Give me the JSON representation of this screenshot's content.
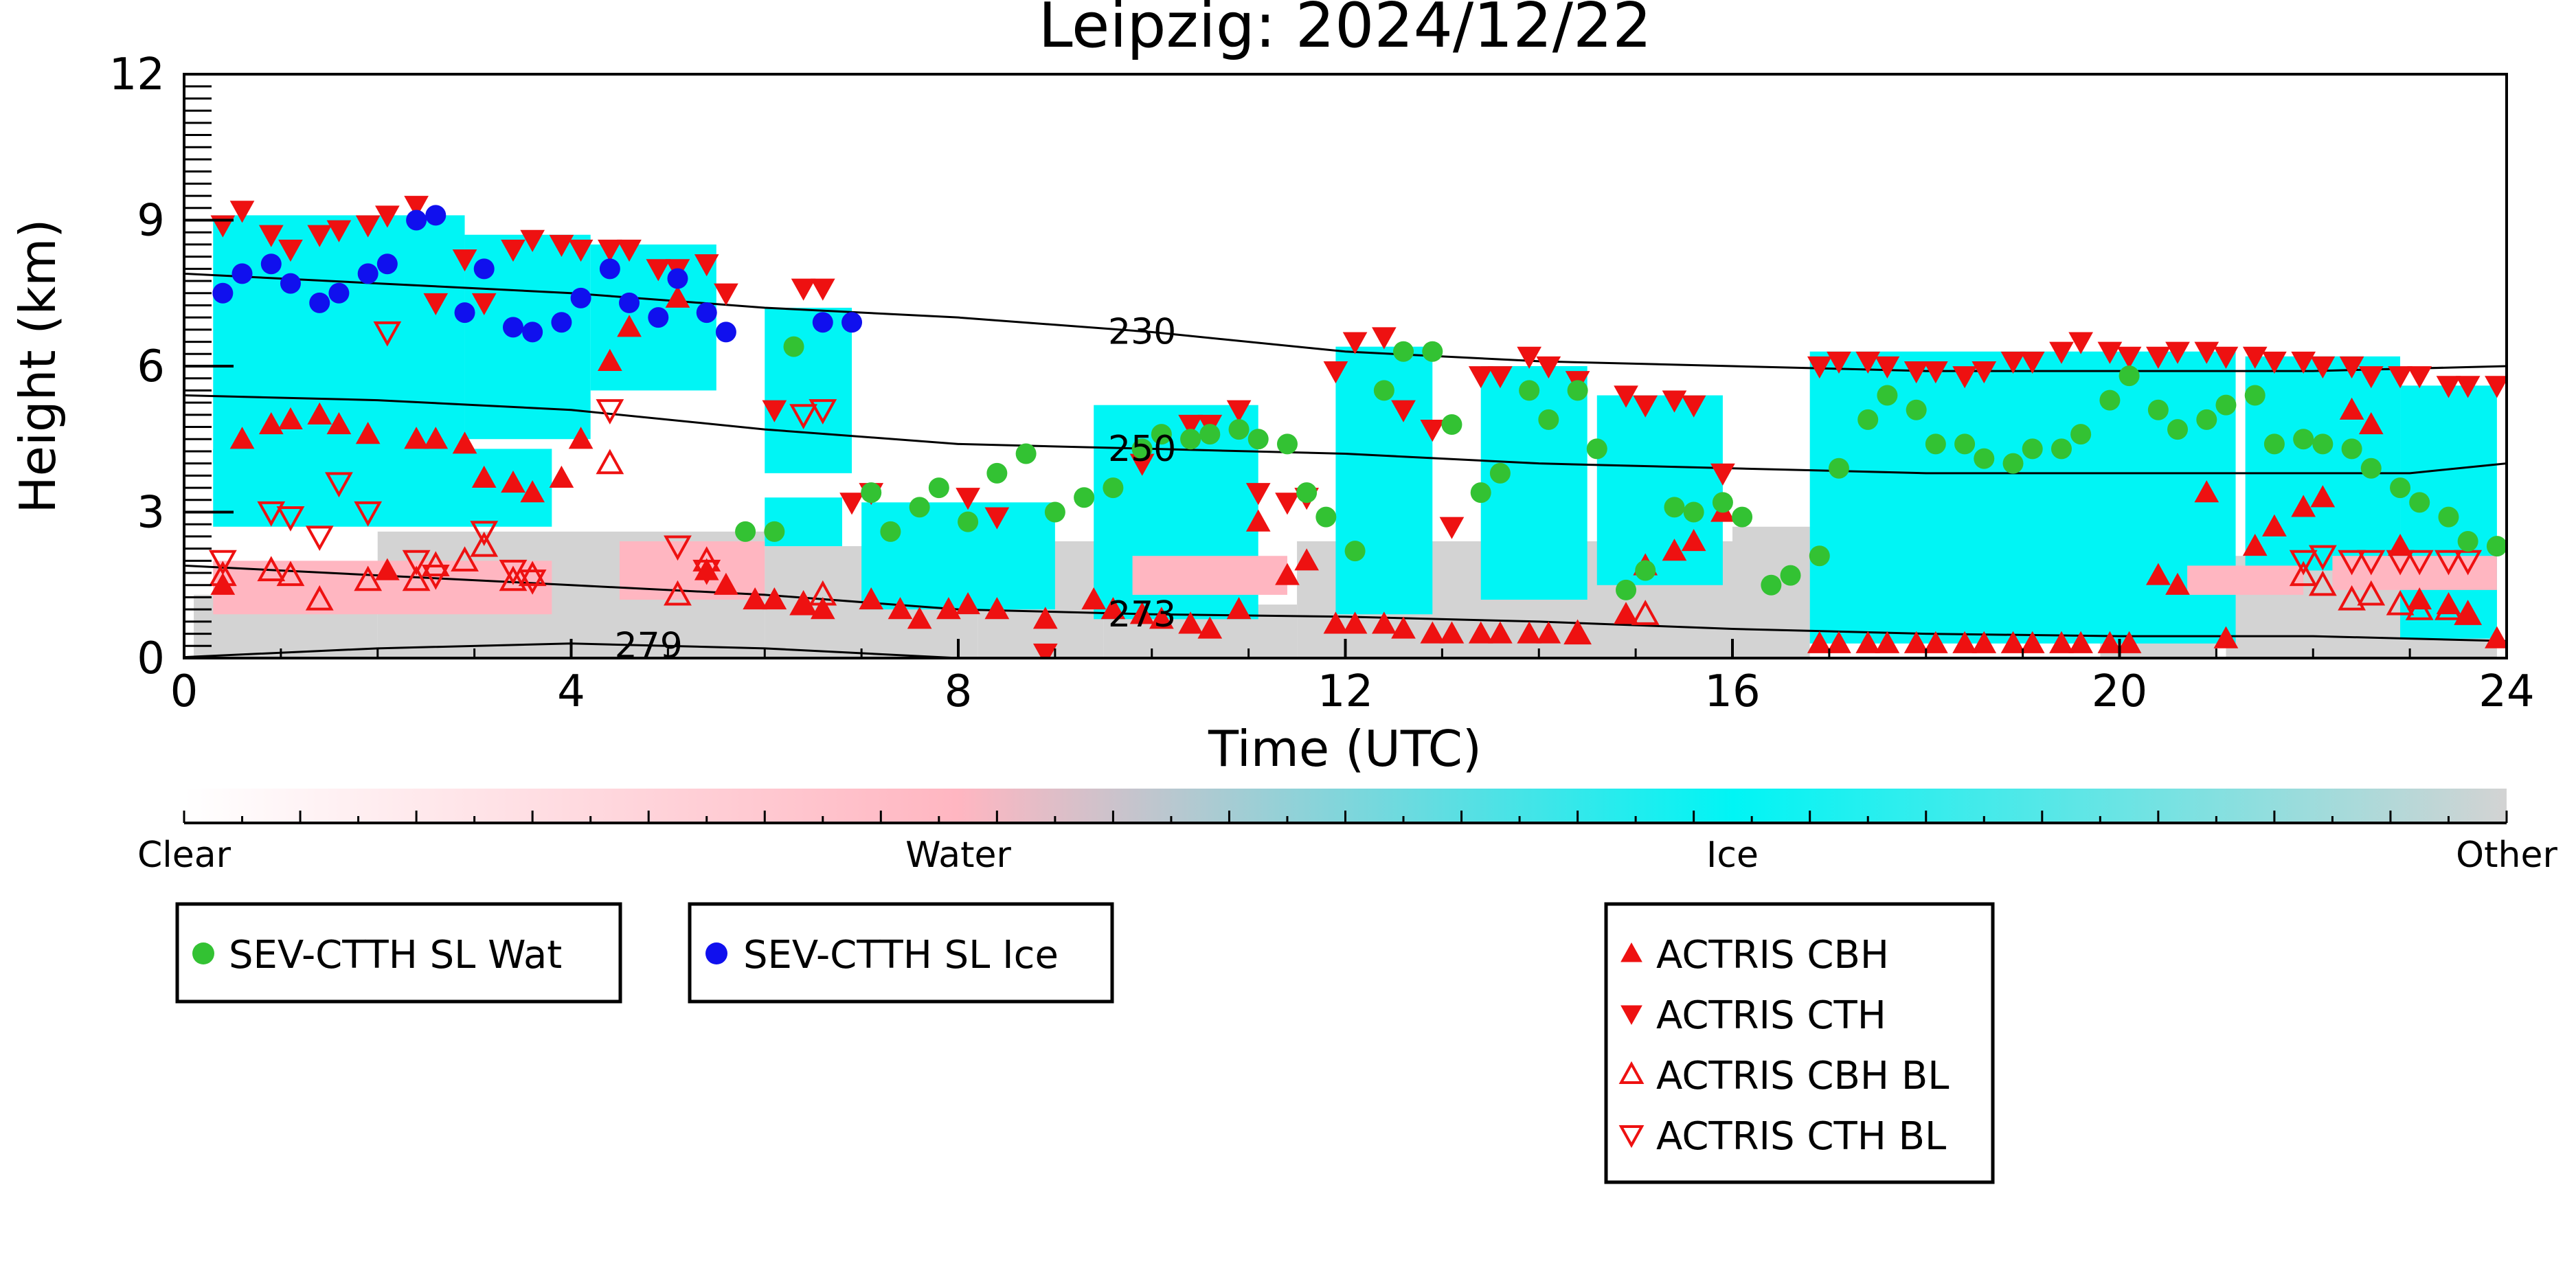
{
  "chart_data": {
    "type": "scatter",
    "title": "Leipzig: 2024/12/22",
    "xlabel": "Time (UTC)",
    "ylabel": "Height (km)",
    "xlim": [
      0,
      24
    ],
    "ylim": [
      0,
      12
    ],
    "xticks": [
      "0",
      "4",
      "8",
      "12",
      "16",
      "20",
      "24"
    ],
    "yticks": [
      "0",
      "3",
      "6",
      "9",
      "12"
    ],
    "colorbar": {
      "labels": [
        "Clear",
        "Water",
        "Ice",
        "Other"
      ],
      "colors": [
        "#ffffff",
        "#ffb6c1",
        "#00f5f5",
        "#d3d3d3"
      ]
    },
    "colors": {
      "clear": "#ffffff",
      "water": "#ffb6c1",
      "ice": "#00f5f5",
      "other": "#d3d3d3",
      "sev_wat": "#33c233",
      "sev_ice": "#1010ee",
      "actris": "#ee1111"
    },
    "isotherms": [
      {
        "label": "230",
        "label_x": 9.9,
        "x": [
          0,
          2,
          4,
          6,
          8,
          10,
          12,
          14,
          16,
          18,
          20,
          22,
          24
        ],
        "y": [
          7.9,
          7.7,
          7.5,
          7.2,
          7.0,
          6.7,
          6.3,
          6.1,
          6.0,
          5.9,
          5.9,
          5.9,
          6.0
        ]
      },
      {
        "label": "250",
        "label_x": 9.9,
        "x": [
          0,
          2,
          4,
          6,
          8,
          10,
          12,
          14,
          16,
          18,
          20,
          22,
          23,
          24
        ],
        "y": [
          5.4,
          5.3,
          5.1,
          4.7,
          4.4,
          4.3,
          4.2,
          4.0,
          3.9,
          3.8,
          3.8,
          3.8,
          3.8,
          4.0
        ]
      },
      {
        "label": "273",
        "label_x": 9.9,
        "x": [
          0,
          2,
          4,
          6,
          8,
          10,
          12,
          14,
          16,
          18,
          20,
          22,
          24
        ],
        "y": [
          1.9,
          1.7,
          1.5,
          1.3,
          1.0,
          0.9,
          0.85,
          0.75,
          0.6,
          0.5,
          0.45,
          0.45,
          0.35
        ]
      },
      {
        "label": "279",
        "label_x": 4.8,
        "x": [
          0,
          2,
          4,
          6,
          8
        ],
        "y": [
          0.02,
          0.2,
          0.3,
          0.2,
          0.0
        ]
      }
    ],
    "mask": {
      "ice": [
        [
          0.3,
          2.9,
          4.0,
          9.1
        ],
        [
          2.9,
          4.2,
          4.5,
          8.7
        ],
        [
          4.2,
          5.5,
          5.5,
          8.5
        ],
        [
          0.3,
          3.8,
          2.7,
          4.3
        ],
        [
          6.0,
          6.9,
          3.8,
          7.2
        ],
        [
          6.0,
          6.8,
          2.3,
          3.3
        ],
        [
          7.0,
          9.0,
          1.0,
          3.2
        ],
        [
          9.4,
          11.1,
          0.8,
          5.2
        ],
        [
          11.9,
          12.9,
          0.9,
          6.4
        ],
        [
          13.4,
          14.5,
          1.2,
          6.0
        ],
        [
          14.6,
          15.9,
          1.5,
          5.4
        ],
        [
          16.8,
          21.2,
          0.3,
          6.3
        ],
        [
          21.3,
          22.9,
          1.8,
          6.2
        ],
        [
          22.9,
          23.9,
          0.4,
          5.6
        ]
      ],
      "water": [
        [
          0.3,
          3.8,
          0.9,
          2.0
        ],
        [
          4.5,
          6.0,
          1.2,
          2.4
        ],
        [
          9.8,
          11.4,
          1.3,
          2.1
        ],
        [
          20.7,
          21.9,
          1.3,
          1.9
        ],
        [
          22.2,
          23.9,
          1.4,
          2.1
        ]
      ],
      "other": [
        [
          0.1,
          2.0,
          0.0,
          1.3
        ],
        [
          2.0,
          6.0,
          0.0,
          2.6
        ],
        [
          6.0,
          8.2,
          0.0,
          2.3
        ],
        [
          8.2,
          9.5,
          0.0,
          2.4
        ],
        [
          9.5,
          11.5,
          0.0,
          1.1
        ],
        [
          11.5,
          16.0,
          0.0,
          2.4
        ],
        [
          16.0,
          16.8,
          0.0,
          2.7
        ],
        [
          21.1,
          23.9,
          0.0,
          2.1
        ],
        [
          19.8,
          21.0,
          0.0,
          0.9
        ]
      ]
    },
    "series": [
      {
        "name": "SEV-CTTH SL Wat",
        "marker": "circle",
        "color": "#33c233",
        "x": [
          6.3,
          5.8,
          6.1,
          7.1,
          7.3,
          7.6,
          7.8,
          8.1,
          8.4,
          8.7,
          9.0,
          9.3,
          9.6,
          9.9,
          10.1,
          10.4,
          10.6,
          10.9,
          11.1,
          11.4,
          11.6,
          11.8,
          12.1,
          12.4,
          12.6,
          12.9,
          13.1,
          13.4,
          13.6,
          13.9,
          14.1,
          14.4,
          14.6,
          14.9,
          15.1,
          15.4,
          15.6,
          15.9,
          16.1,
          16.4,
          16.6,
          16.9,
          17.1,
          17.4,
          17.6,
          17.9,
          18.1,
          18.4,
          18.6,
          18.9,
          19.1,
          19.4,
          19.6,
          19.9,
          20.1,
          20.4,
          20.6,
          20.9,
          21.1,
          21.4,
          21.6,
          21.9,
          22.1,
          22.4,
          22.6,
          22.9,
          23.1,
          23.4,
          23.6,
          23.9
        ],
        "y": [
          6.4,
          2.6,
          2.6,
          3.4,
          2.6,
          3.1,
          3.5,
          2.8,
          3.8,
          4.2,
          3.0,
          3.3,
          3.5,
          4.3,
          4.6,
          4.5,
          4.6,
          4.7,
          4.5,
          4.4,
          3.4,
          2.9,
          2.2,
          5.5,
          6.3,
          6.3,
          4.8,
          3.4,
          3.8,
          5.5,
          4.9,
          5.5,
          4.3,
          1.4,
          1.8,
          3.1,
          3.0,
          3.2,
          2.9,
          1.5,
          1.7,
          2.1,
          3.9,
          4.9,
          5.4,
          5.1,
          4.4,
          4.4,
          4.1,
          4.0,
          4.3,
          4.3,
          4.6,
          5.3,
          5.8,
          5.1,
          4.7,
          4.9,
          5.2,
          5.4,
          4.4,
          4.5,
          4.4,
          4.3,
          3.9,
          3.5,
          3.2,
          2.9,
          2.4,
          2.3
        ]
      },
      {
        "name": "SEV-CTTH SL Ice",
        "marker": "circle",
        "color": "#1010ee",
        "x": [
          0.4,
          0.6,
          0.9,
          1.1,
          1.4,
          1.6,
          1.9,
          2.1,
          2.4,
          2.6,
          2.9,
          3.1,
          3.4,
          3.6,
          3.9,
          4.1,
          4.4,
          4.6,
          4.9,
          5.1,
          5.4,
          5.6,
          6.6,
          6.9
        ],
        "y": [
          7.5,
          7.9,
          8.1,
          7.7,
          7.3,
          7.5,
          7.9,
          8.1,
          9.0,
          9.1,
          7.1,
          8.0,
          6.8,
          6.7,
          6.9,
          7.4,
          8.0,
          7.3,
          7.0,
          7.8,
          7.1,
          6.7,
          6.9,
          6.9
        ]
      },
      {
        "name": "ACTRIS CBH",
        "marker": "triangle-up",
        "color": "#ee1111",
        "filled": true,
        "x": [
          0.4,
          0.6,
          0.9,
          1.1,
          1.4,
          1.6,
          1.9,
          2.1,
          2.4,
          2.6,
          2.9,
          3.1,
          3.4,
          3.6,
          3.9,
          4.1,
          4.4,
          4.6,
          5.1,
          5.4,
          5.6,
          5.9,
          6.1,
          6.4,
          6.6,
          7.1,
          7.4,
          7.6,
          7.9,
          8.1,
          8.4,
          8.9,
          9.4,
          9.6,
          9.9,
          10.1,
          10.4,
          10.6,
          10.9,
          11.1,
          11.4,
          11.6,
          11.9,
          12.1,
          12.4,
          12.6,
          12.9,
          13.1,
          13.4,
          13.6,
          13.9,
          14.1,
          14.4,
          14.9,
          15.1,
          15.4,
          15.6,
          15.9,
          16.9,
          17.1,
          17.4,
          17.6,
          17.9,
          18.1,
          18.4,
          18.6,
          18.9,
          19.1,
          19.4,
          19.6,
          19.9,
          20.1,
          20.4,
          20.6,
          20.9,
          21.1,
          21.4,
          21.6,
          21.9,
          22.1,
          22.4,
          22.6,
          22.9,
          23.1,
          23.4,
          23.6,
          23.9
        ],
        "y": [
          1.5,
          4.5,
          4.8,
          4.9,
          5.0,
          4.8,
          4.6,
          1.8,
          4.5,
          4.5,
          4.4,
          3.7,
          3.6,
          3.4,
          3.7,
          4.5,
          6.1,
          6.8,
          7.4,
          1.8,
          1.5,
          1.2,
          1.2,
          1.1,
          1.0,
          1.2,
          1.0,
          0.8,
          1.0,
          1.1,
          1.0,
          0.8,
          1.2,
          1.0,
          0.9,
          0.8,
          0.7,
          0.6,
          1.0,
          2.8,
          1.7,
          2.0,
          0.7,
          0.7,
          0.7,
          0.6,
          0.5,
          0.5,
          0.5,
          0.5,
          0.5,
          0.5,
          0.5,
          0.9,
          1.9,
          2.2,
          2.4,
          3.0,
          0.3,
          0.3,
          0.3,
          0.3,
          0.3,
          0.3,
          0.3,
          0.3,
          0.3,
          0.3,
          0.3,
          0.3,
          0.3,
          0.3,
          1.7,
          1.5,
          3.4,
          0.4,
          2.3,
          2.7,
          3.1,
          3.3,
          5.1,
          4.8,
          2.3,
          1.2,
          1.1,
          0.9,
          0.4
        ]
      },
      {
        "name": "ACTRIS CTH",
        "marker": "triangle-down",
        "color": "#ee1111",
        "filled": true,
        "x": [
          0.4,
          0.6,
          0.9,
          1.1,
          1.4,
          1.6,
          1.9,
          2.1,
          2.4,
          2.6,
          2.9,
          3.1,
          3.4,
          3.6,
          3.9,
          4.1,
          4.4,
          4.6,
          4.9,
          5.1,
          5.4,
          5.6,
          6.1,
          6.4,
          6.6,
          6.9,
          7.1,
          8.1,
          8.4,
          8.9,
          9.9,
          10.4,
          10.6,
          10.9,
          11.1,
          11.4,
          11.6,
          11.9,
          12.1,
          12.4,
          12.6,
          12.9,
          13.1,
          13.4,
          13.6,
          13.9,
          14.1,
          14.4,
          14.9,
          15.1,
          15.4,
          15.6,
          15.9,
          16.9,
          17.1,
          17.4,
          17.6,
          17.9,
          18.1,
          18.4,
          18.6,
          18.9,
          19.1,
          19.4,
          19.6,
          19.9,
          20.1,
          20.4,
          20.6,
          20.9,
          21.1,
          21.4,
          21.6,
          21.9,
          22.1,
          22.4,
          22.6,
          22.9,
          23.1,
          23.4,
          23.6,
          23.9
        ],
        "y": [
          8.9,
          9.2,
          8.7,
          8.4,
          8.7,
          8.8,
          8.9,
          9.1,
          9.3,
          7.3,
          8.2,
          7.3,
          8.4,
          8.6,
          8.5,
          8.4,
          8.4,
          8.4,
          8.0,
          8.0,
          8.1,
          7.5,
          5.1,
          7.6,
          7.6,
          3.2,
          3.4,
          3.3,
          2.9,
          0.1,
          4.0,
          4.8,
          4.8,
          5.1,
          3.4,
          3.2,
          3.3,
          5.9,
          6.5,
          6.6,
          5.1,
          4.7,
          2.7,
          5.8,
          5.8,
          6.2,
          6.0,
          5.7,
          5.4,
          5.2,
          5.3,
          5.2,
          3.8,
          6.0,
          6.1,
          6.1,
          6.0,
          5.9,
          5.9,
          5.8,
          5.9,
          6.1,
          6.1,
          6.3,
          6.5,
          6.3,
          6.2,
          6.2,
          6.3,
          6.3,
          6.2,
          6.2,
          6.1,
          6.1,
          6.0,
          6.0,
          5.8,
          5.8,
          5.8,
          5.6,
          5.6,
          5.6
        ]
      },
      {
        "name": "ACTRIS CBH BL",
        "marker": "triangle-up",
        "color": "#ee1111",
        "filled": false,
        "x": [
          0.4,
          0.9,
          1.1,
          1.4,
          1.9,
          2.4,
          2.6,
          2.9,
          3.1,
          3.4,
          3.6,
          4.4,
          5.1,
          5.4,
          6.4,
          6.6,
          14.4,
          15.1,
          21.9,
          22.1,
          22.4,
          22.6,
          22.9,
          23.1,
          23.4,
          23.6
        ],
        "y": [
          1.7,
          1.8,
          1.7,
          1.2,
          1.6,
          1.6,
          1.9,
          2.0,
          2.3,
          1.6,
          1.7,
          4.0,
          1.3,
          2.0,
          1.1,
          1.3,
          0.5,
          0.9,
          1.7,
          1.5,
          1.2,
          1.3,
          1.1,
          1.0,
          1.0,
          0.9
        ]
      },
      {
        "name": "ACTRIS CTH BL",
        "marker": "triangle-down",
        "color": "#ee1111",
        "filled": false,
        "x": [
          0.4,
          0.9,
          1.1,
          1.4,
          1.6,
          1.9,
          2.1,
          2.4,
          2.6,
          3.1,
          3.4,
          3.6,
          4.4,
          5.1,
          5.4,
          6.4,
          6.6,
          21.9,
          22.1,
          22.4,
          22.6,
          22.9,
          23.1,
          23.4,
          23.6
        ],
        "y": [
          2.0,
          3.0,
          2.9,
          2.5,
          3.6,
          3.0,
          6.7,
          2.0,
          1.7,
          2.6,
          1.8,
          1.6,
          5.1,
          2.3,
          1.8,
          5.0,
          5.1,
          2.0,
          2.1,
          2.0,
          2.0,
          2.0,
          2.0,
          2.0,
          2.0
        ]
      }
    ],
    "legend": [
      {
        "group": "sev-wat",
        "label": "SEV-CTTH SL Wat"
      },
      {
        "group": "sev-ice",
        "label": "SEV-CTTH SL Ice"
      },
      {
        "group": "actris",
        "items": [
          "ACTRIS CBH",
          "ACTRIS CTH",
          "ACTRIS CBH BL",
          "ACTRIS CTH BL"
        ]
      }
    ]
  }
}
